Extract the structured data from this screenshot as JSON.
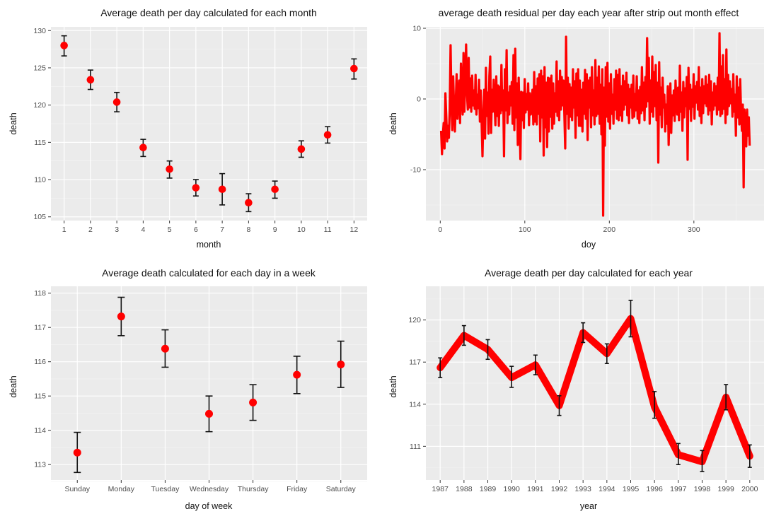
{
  "chart_data": [
    {
      "type": "scatter",
      "title": "Average death per day calculated for each month",
      "xlabel": "month",
      "ylabel": "death",
      "x": [
        1,
        2,
        3,
        4,
        5,
        6,
        7,
        8,
        9,
        10,
        11,
        12
      ],
      "values": [
        128.0,
        123.4,
        120.4,
        114.3,
        111.4,
        108.9,
        108.7,
        106.9,
        108.7,
        114.1,
        116.0,
        124.9
      ],
      "err_low": [
        126.6,
        122.1,
        119.1,
        113.1,
        110.2,
        107.8,
        106.6,
        105.7,
        107.5,
        113.0,
        114.9,
        123.5
      ],
      "err_high": [
        129.3,
        124.7,
        121.7,
        115.4,
        112.5,
        110.0,
        110.8,
        108.1,
        109.8,
        115.2,
        117.1,
        126.2
      ],
      "xlim": [
        0.5,
        12.5
      ],
      "ylim": [
        104.5,
        130.5
      ],
      "xticks": [
        "1",
        "2",
        "3",
        "4",
        "5",
        "6",
        "7",
        "8",
        "9",
        "10",
        "11",
        "12"
      ],
      "yticks": [
        "105",
        "110",
        "115",
        "120",
        "125",
        "130"
      ],
      "color": "#ff0000"
    },
    {
      "type": "line",
      "title": "average death residual per day each year after strip out month effect",
      "xlabel": "doy",
      "ylabel": "death",
      "x_range": [
        1,
        366
      ],
      "values": [
        -4.5,
        -7.8,
        -5.2,
        -3.4,
        -7.0,
        0.8,
        -2.5,
        -6.0,
        -3.8,
        -5.5,
        -1.5,
        7.6,
        -0.5,
        -4.4,
        3.2,
        -1.0,
        -4.6,
        -0.6,
        3.5,
        -2.8,
        0.5,
        2.6,
        -3.4,
        5.0,
        1.0,
        -2.2,
        6.5,
        -1.8,
        2.8,
        7.7,
        0.8,
        -1.5,
        5.8,
        -1.2,
        2.9,
        -1.8,
        3.3,
        -0.9,
        1.2,
        -1.4,
        3.4,
        -2.2,
        0.6,
        -1.3,
        2.7,
        -3.2,
        1.2,
        -3.3,
        -8.1,
        -2.4,
        1.3,
        -5.6,
        4.4,
        -2.4,
        0.9,
        -4.9,
        3.2,
        6.0,
        -4.8,
        1.3,
        -1.8,
        2.7,
        -0.5,
        -3.7,
        3.2,
        -2.4,
        1.9,
        -3.8,
        1.7,
        -2.0,
        4.8,
        -1.6,
        1.2,
        -8.1,
        4.2,
        -1.6,
        6.9,
        -3.4,
        0.9,
        -2.2,
        1.8,
        -0.9,
        2.4,
        -3.5,
        6.2,
        -4.4,
        7.1,
        -2.6,
        2.2,
        -6.5,
        3.0,
        -2.4,
        -8.5,
        1.0,
        -3.0,
        0.9,
        -4.1,
        2.8,
        -1.9,
        0.7,
        -1.5,
        2.2,
        -3.7,
        0.8,
        -2.2,
        -1.1,
        1.3,
        -3.6,
        3.8,
        -3.2,
        1.8,
        -3.6,
        2.9,
        -2.1,
        3.5,
        -6.0,
        4.0,
        -2.6,
        3.2,
        -8.0,
        4.5,
        -4.0,
        2.3,
        -6.8,
        3.0,
        -4.6,
        2.9,
        -2.5,
        3.3,
        -4.2,
        2.2,
        -3.5,
        0.8,
        -1.8,
        5.3,
        -2.4,
        2.5,
        -3.0,
        4.0,
        -1.5,
        3.1,
        -0.9,
        2.6,
        -2.2,
        -7.0,
        8.8,
        -2.1,
        3.0,
        -4.2,
        2.1,
        -2.5,
        1.6,
        -3.0,
        4.2,
        -1.2,
        2.5,
        -5.5,
        3.6,
        -2.3,
        4.2,
        -3.8,
        2.6,
        -3.8,
        1.3,
        -4.6,
        2.3,
        -2.1,
        4.1,
        -2.8,
        3.5,
        -5.8,
        2.6,
        -1.2,
        3.0,
        -4.0,
        4.5,
        -2.3,
        1.2,
        -3.6,
        5.5,
        -2.4,
        3.0,
        -2.1,
        4.6,
        -3.5,
        2.0,
        -5.0,
        4.2,
        -16.5,
        1.6,
        -6.6,
        4.5,
        -2.5,
        5.1,
        -3.2,
        2.2,
        -4.2,
        3.5,
        -2.1,
        0.6,
        -3.5,
        2.8,
        -1.5,
        4.0,
        -2.8,
        3.4,
        -3.0,
        4.2,
        -2.3,
        1.8,
        -3.1,
        3.3,
        -1.5,
        2.5,
        -0.8,
        3.7,
        -2.3,
        2.0,
        -3.4,
        1.4,
        -1.2,
        2.0,
        -2.7,
        3.3,
        -2.5,
        0.7,
        -1.6,
        3.2,
        -2.8,
        1.2,
        -3.4,
        1.7,
        -2.0,
        4.5,
        -1.6,
        2.3,
        -3.0,
        3.1,
        -1.1,
        8.6,
        -0.3,
        5.8,
        -3.5,
        2.6,
        -1.8,
        6.0,
        -2.5,
        3.8,
        -1.0,
        4.8,
        -3.0,
        2.3,
        -9.0,
        5.2,
        -2.2,
        1.6,
        -4.0,
        3.0,
        -1.2,
        0.6,
        -4.6,
        -0.8,
        -3.5,
        1.8,
        -6.5,
        -1.2,
        2.2,
        -4.8,
        0.5,
        -2.3,
        1.2,
        -3.1,
        2.6,
        -0.6,
        -2.2,
        1.6,
        -3.0,
        4.7,
        -1.8,
        0.9,
        -4.5,
        2.4,
        -2.6,
        1.5,
        -1.0,
        3.1,
        -8.6,
        4.4,
        -1.4,
        2.0,
        -3.1,
        1.3,
        -1.1,
        3.5,
        -2.8,
        1.8,
        -0.5,
        2.4,
        -1.5,
        4.5,
        -2.4,
        1.6,
        -3.4,
        2.8,
        -2.0,
        1.8,
        -0.6,
        3.2,
        -1.0,
        2.0,
        -2.2,
        3.4,
        -1.6,
        2.5,
        -3.6,
        0.9,
        -1.5,
        2.2,
        -0.9,
        1.8,
        -2.2,
        3.0,
        -1.5,
        9.3,
        -2.4,
        4.6,
        -2.1,
        6.2,
        -1.4,
        2.8,
        -3.4,
        7.0,
        -2.2,
        3.4,
        -1.0,
        2.5,
        -0.6,
        1.4,
        -2.5,
        3.5,
        -1.8,
        0.6,
        -5.2,
        3.2,
        -2.6,
        1.6,
        -3.6,
        2.8,
        -1.9,
        -4.5,
        -0.8,
        -12.5,
        -1.5,
        -3.0,
        -6.7,
        -1.5,
        -5.2,
        -2.6,
        -6.6
      ],
      "xlim": [
        -17,
        383
      ],
      "ylim": [
        -17.2,
        10.2
      ],
      "xticks": [
        0,
        100,
        200,
        300
      ],
      "xtick_labels": [
        "0",
        "100",
        "200",
        "300"
      ],
      "yticks": [
        -10,
        0,
        10
      ],
      "ytick_labels": [
        "-10",
        "0",
        "10"
      ],
      "color": "#ff0000"
    },
    {
      "type": "scatter",
      "title": "Average death calculated for each day in a week",
      "xlabel": "day of week",
      "ylabel": "death",
      "categories": [
        "Sunday",
        "Monday",
        "Tuesday",
        "Wednesday",
        "Thursday",
        "Friday",
        "Saturday"
      ],
      "values": [
        113.35,
        117.32,
        116.38,
        114.48,
        114.81,
        115.62,
        115.92
      ],
      "err_low": [
        112.77,
        116.76,
        115.84,
        113.96,
        114.29,
        115.07,
        115.25
      ],
      "err_high": [
        113.94,
        117.88,
        116.93,
        115.0,
        115.33,
        116.16,
        116.6
      ],
      "ylim": [
        112.55,
        118.2
      ],
      "yticks": [
        "113",
        "114",
        "115",
        "116",
        "117",
        "118"
      ],
      "color": "#ff0000"
    },
    {
      "type": "line",
      "title": "Average death per day calculated for each year",
      "xlabel": "year",
      "ylabel": "death",
      "x": [
        1987,
        1988,
        1989,
        1990,
        1991,
        1992,
        1993,
        1994,
        1995,
        1996,
        1997,
        1998,
        1999,
        2000
      ],
      "values": [
        116.6,
        118.9,
        117.9,
        115.9,
        116.8,
        113.9,
        119.1,
        117.6,
        120.1,
        113.8,
        110.4,
        109.9,
        114.5,
        110.3
      ],
      "err_low": [
        115.9,
        118.2,
        117.2,
        115.2,
        116.1,
        113.2,
        118.4,
        116.9,
        118.8,
        113.0,
        109.7,
        109.2,
        113.6,
        109.5
      ],
      "err_high": [
        117.3,
        119.6,
        118.6,
        116.7,
        117.5,
        114.6,
        119.8,
        118.3,
        121.4,
        114.9,
        111.2,
        110.7,
        115.4,
        111.1
      ],
      "xlim": [
        1986.4,
        2000.6
      ],
      "ylim": [
        108.6,
        122.4
      ],
      "xtick_labels": [
        "1987",
        "1988",
        "1989",
        "1990",
        "1991",
        "1992",
        "1993",
        "1994",
        "1995",
        "1996",
        "1997",
        "1998",
        "1999",
        "2000"
      ],
      "yticks": [
        111,
        114,
        117,
        120
      ],
      "ytick_labels": [
        "111",
        "114",
        "117",
        "120"
      ],
      "color": "#ff0000"
    }
  ]
}
